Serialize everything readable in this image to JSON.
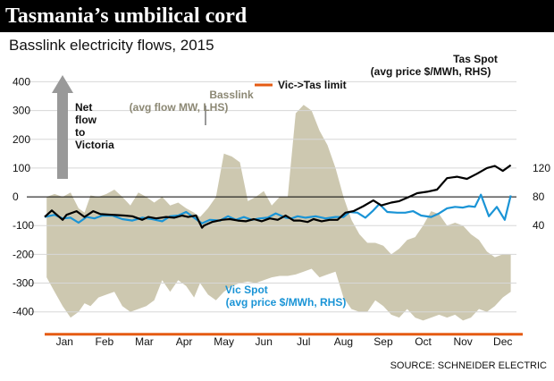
{
  "header": {
    "title": "Tasmania’s umbilical cord",
    "subtitle": "Basslink electricity flows, 2015",
    "source": "SOURCE: SCHNEIDER ELECTRIC"
  },
  "colors": {
    "background": "#ffffff",
    "title_bar": "#000000",
    "basslink_area": "#cdc8b0",
    "vic_limit": "#e55b13",
    "tas_spot": "#000000",
    "vic_spot": "#1a94d6",
    "arrow": "#999999"
  },
  "chart_data": {
    "type": "line",
    "title": "Basslink electricity flows, 2015",
    "x_categories": [
      "Jan",
      "Feb",
      "Mar",
      "Apr",
      "May",
      "Jun",
      "Jul",
      "Aug",
      "Sep",
      "Oct",
      "Nov",
      "Dec"
    ],
    "x_range_months": [
      0.5,
      12.5
    ],
    "y_left": {
      "range": [
        -460,
        420
      ],
      "ticks": [
        400,
        300,
        200,
        100,
        0,
        -100,
        -200,
        -300,
        -400
      ],
      "tick_labels": [
        "400",
        "300",
        "200",
        "100",
        "0",
        "-100",
        "-200",
        "-300",
        "-400"
      ]
    },
    "y_right": {
      "ticks": [
        120,
        80,
        40
      ],
      "tick_labels": [
        "120",
        "80",
        "40"
      ],
      "scale": {
        "ref_left": [
          0,
          100
        ],
        "ref_right": [
          80,
          120
        ]
      }
    },
    "grid": true,
    "legend": {
      "label": "Vic->Tas limit",
      "position": "top-center"
    },
    "annotations": {
      "net_flow": [
        "Net",
        "flow",
        "to",
        "Victoria"
      ],
      "basslink": [
        "Basslink",
        "(avg flow MW, LHS)"
      ],
      "tas_spot": [
        "Tas Spot",
        "(avg price $/MWh, RHS)"
      ],
      "vic_spot": [
        "Vic Spot",
        "(avg price $/MWh, RHS)"
      ]
    },
    "series": [
      {
        "name": "Vic->Tas limit",
        "axis": "left",
        "kind": "hline",
        "value": -478
      },
      {
        "name": "Basslink (avg flow MW, LHS)",
        "axis": "left",
        "kind": "range-area",
        "x": [
          0.55,
          0.75,
          0.95,
          1.15,
          1.35,
          1.5,
          1.65,
          1.85,
          2.05,
          2.25,
          2.45,
          2.65,
          2.85,
          3.05,
          3.25,
          3.45,
          3.65,
          3.85,
          4.05,
          4.25,
          4.4,
          4.6,
          4.8,
          5.0,
          5.2,
          5.4,
          5.6,
          5.8,
          6.0,
          6.2,
          6.4,
          6.6,
          6.8,
          7.0,
          7.2,
          7.4,
          7.6,
          7.8,
          8.0,
          8.2,
          8.4,
          8.6,
          8.8,
          9.0,
          9.2,
          9.4,
          9.6,
          9.8,
          10.0,
          10.2,
          10.4,
          10.6,
          10.8,
          11.0,
          11.2,
          11.4,
          11.6,
          11.8,
          12.0,
          12.2
        ],
        "upper": [
          0,
          10,
          0,
          15,
          -40,
          -55,
          5,
          0,
          10,
          25,
          0,
          -30,
          15,
          0,
          -20,
          0,
          -30,
          -20,
          -40,
          -55,
          -70,
          -40,
          0,
          150,
          140,
          120,
          -15,
          0,
          20,
          -30,
          0,
          0,
          290,
          320,
          300,
          230,
          180,
          100,
          0,
          -80,
          -130,
          -160,
          -160,
          -170,
          -200,
          -180,
          -150,
          -140,
          -100,
          -50,
          -60,
          -100,
          -90,
          -100,
          -130,
          -150,
          -190,
          -210,
          -200,
          -200
        ],
        "lower": [
          -280,
          -330,
          -380,
          -420,
          -400,
          -370,
          -380,
          -350,
          -340,
          -330,
          -380,
          -400,
          -390,
          -380,
          -360,
          -290,
          -330,
          -290,
          -310,
          -350,
          -300,
          -340,
          -360,
          -330,
          -310,
          -300,
          -295,
          -300,
          -290,
          -280,
          -275,
          -275,
          -270,
          -260,
          -250,
          -280,
          -270,
          -260,
          -350,
          -390,
          -400,
          -400,
          -360,
          -380,
          -410,
          -420,
          -390,
          -420,
          -430,
          -420,
          -410,
          -420,
          -410,
          -430,
          -420,
          -390,
          -400,
          -380,
          -350,
          -330
        ]
      },
      {
        "name": "Tas Spot (avg price $/MWh, RHS)",
        "axis": "right",
        "kind": "line",
        "x": [
          0.5,
          0.68,
          0.95,
          1.05,
          1.3,
          1.5,
          1.72,
          1.9,
          2.2,
          2.5,
          2.7,
          2.95,
          3.1,
          3.3,
          3.55,
          3.75,
          3.95,
          4.1,
          4.3,
          4.45,
          4.5,
          4.7,
          4.95,
          5.15,
          5.35,
          5.55,
          5.75,
          5.95,
          6.15,
          6.35,
          6.55,
          6.75,
          6.9,
          7.1,
          7.25,
          7.45,
          7.65,
          7.85,
          8.05,
          8.25,
          8.5,
          8.75,
          8.95,
          9.2,
          9.4,
          9.65,
          9.85,
          10.1,
          10.35,
          10.6,
          10.85,
          11.1,
          11.35,
          11.6,
          11.8,
          12.0,
          12.2
        ],
        "y": [
          52,
          61,
          48,
          55,
          60,
          52,
          60,
          56,
          55,
          54,
          53,
          48,
          52,
          50,
          52,
          51,
          54,
          52,
          54,
          37,
          40,
          45,
          48,
          49,
          47,
          46,
          49,
          46,
          50,
          48,
          54,
          47,
          47,
          45,
          49,
          46,
          48,
          48,
          58,
          60,
          67,
          75,
          68,
          72,
          74,
          80,
          85,
          87,
          90,
          106,
          108,
          105,
          112,
          120,
          123,
          116,
          124
        ]
      },
      {
        "name": "Vic Spot (avg price $/MWh, RHS)",
        "axis": "right",
        "kind": "line",
        "x": [
          0.5,
          0.75,
          0.95,
          1.15,
          1.35,
          1.55,
          1.75,
          1.95,
          2.2,
          2.45,
          2.7,
          2.95,
          3.2,
          3.45,
          3.65,
          3.85,
          4.05,
          4.3,
          4.45,
          4.65,
          4.9,
          5.1,
          5.3,
          5.5,
          5.7,
          5.9,
          6.1,
          6.3,
          6.55,
          6.7,
          6.85,
          7.05,
          7.3,
          7.55,
          7.8,
          8.0,
          8.15,
          8.35,
          8.55,
          8.75,
          8.9,
          9.1,
          9.35,
          9.55,
          9.75,
          9.95,
          10.2,
          10.4,
          10.6,
          10.8,
          11.0,
          11.15,
          11.3,
          11.45,
          11.65,
          11.85,
          12.05,
          12.2
        ],
        "y": [
          52,
          55,
          50,
          51,
          44,
          52,
          50,
          54,
          54,
          49,
          47,
          51,
          49,
          46,
          53,
          54,
          59,
          49,
          43,
          48,
          47,
          53,
          48,
          52,
          48,
          50,
          51,
          57,
          51,
          50,
          53,
          51,
          53,
          50,
          52,
          52,
          59,
          58,
          51,
          61,
          70,
          59,
          58,
          58,
          60,
          54,
          52,
          57,
          64,
          66,
          65,
          67,
          66,
          83,
          53,
          66,
          48,
          82
        ]
      }
    ]
  }
}
